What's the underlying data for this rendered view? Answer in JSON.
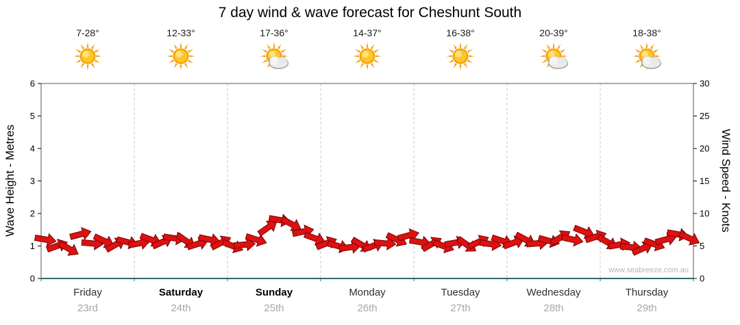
{
  "title": "7 day wind & wave forecast for Cheshunt South",
  "watermark": "www.seabreeze.com.au",
  "colors": {
    "arrow_fill": "#dd1111",
    "arrow_outline": "#7a0000",
    "sun_core": "#f6a100",
    "grid_dash": "#c8c8c8",
    "plot_border": "#555555",
    "baseline": "#336666"
  },
  "axes": {
    "left_title": "Wave Height - Metres",
    "right_title": "Wind Speed - Knots",
    "left_ticks": [
      0,
      1,
      2,
      3,
      4,
      5,
      6
    ],
    "right_ticks": [
      0,
      5,
      10,
      15,
      20,
      25,
      30
    ]
  },
  "days": [
    {
      "temp": "7-28°",
      "icon": "sunny",
      "label": "Friday",
      "date": "23rd",
      "bold": false
    },
    {
      "temp": "12-33°",
      "icon": "sunny",
      "label": "Saturday",
      "date": "24th",
      "bold": true
    },
    {
      "temp": "17-36°",
      "icon": "partly-cloudy",
      "label": "Sunday",
      "date": "25th",
      "bold": true
    },
    {
      "temp": "14-37°",
      "icon": "sunny",
      "label": "Monday",
      "date": "26th",
      "bold": false
    },
    {
      "temp": "16-38°",
      "icon": "sunny",
      "label": "Tuesday",
      "date": "27th",
      "bold": false
    },
    {
      "temp": "20-39°",
      "icon": "partly-cloudy",
      "label": "Wednesday",
      "date": "28th",
      "bold": false
    },
    {
      "temp": "18-38°",
      "icon": "partly-cloudy",
      "label": "Thursday",
      "date": "29th",
      "bold": false
    }
  ],
  "chart_data": {
    "type": "scatter",
    "title": "7 day wind & wave forecast for Cheshunt South",
    "ylabel_left": "Wave Height - Metres",
    "ylabel_right": "Wind Speed - Knots",
    "ylim_left": [
      0,
      6
    ],
    "ylim_right": [
      0,
      30
    ],
    "grid": "vertical dashed day separators only",
    "legend": "none",
    "x_categories": [
      "Friday 23rd",
      "Saturday 24th",
      "Sunday 25th",
      "Monday 26th",
      "Tuesday 27th",
      "Wednesday 28th",
      "Thursday 29th"
    ],
    "points_per_day": 8,
    "series": [
      {
        "name": "Wind speed (knots, right axis), drawn as red direction arrows",
        "marker": "arrow",
        "color": "#dd1111",
        "values": [
          6.0,
          5.0,
          4.6,
          6.8,
          5.4,
          5.8,
          5.2,
          5.6,
          5.4,
          6.0,
          5.6,
          6.2,
          5.8,
          5.3,
          6.0,
          5.5,
          5.0,
          5.2,
          6.0,
          7.8,
          9.0,
          8.4,
          7.2,
          6.2,
          5.4,
          5.0,
          4.8,
          5.2,
          5.0,
          5.4,
          6.0,
          6.6,
          5.6,
          5.3,
          5.0,
          5.5,
          5.2,
          5.6,
          5.3,
          5.8,
          5.5,
          6.0,
          5.4,
          5.8,
          6.3,
          6.0,
          7.2,
          6.4,
          5.6,
          5.2,
          4.8,
          4.6,
          5.3,
          6.0,
          6.8,
          6.2
        ],
        "directions_deg": [
          10,
          -20,
          30,
          -15,
          5,
          25,
          -30,
          15,
          -10,
          20,
          -25,
          8,
          35,
          -18,
          12,
          -28,
          22,
          -5,
          18,
          -35,
          10,
          28,
          -12,
          20,
          -22,
          15,
          -8,
          30,
          -20,
          5,
          25,
          -15,
          10,
          -30,
          20,
          -10,
          35,
          -25,
          8,
          18,
          -20,
          28,
          -5,
          15,
          -32,
          12,
          22,
          -18,
          30,
          -10,
          5,
          -25,
          20,
          -15,
          10,
          25
        ]
      }
    ]
  }
}
